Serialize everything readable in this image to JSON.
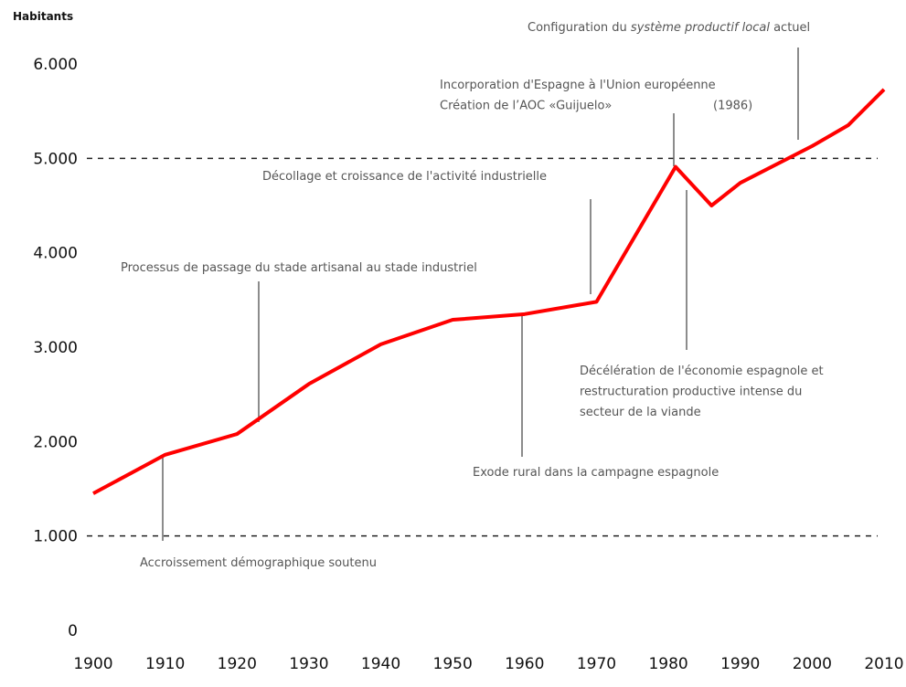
{
  "chart_data": {
    "type": "line",
    "y_label": "Habitants",
    "x": [
      1900,
      1910,
      1920,
      1930,
      1940,
      1950,
      1960,
      1970,
      1981,
      1986,
      1990,
      2000,
      2005,
      2010
    ],
    "series": [
      {
        "name": "Habitants",
        "color": "#ff0000",
        "values": [
          1450,
          1860,
          2080,
          2610,
          3030,
          3290,
          3350,
          3480,
          4910,
          4500,
          4740,
          5130,
          5350,
          5730
        ]
      }
    ],
    "xlim": [
      1900,
      2010
    ],
    "xticks": [
      1900,
      1910,
      1920,
      1930,
      1940,
      1950,
      1960,
      1970,
      1980,
      1990,
      2000,
      2010
    ],
    "ylim": [
      0,
      6000
    ],
    "yticks": [
      {
        "value": 0,
        "label": "0"
      },
      {
        "value": 1000,
        "label": "1.000"
      },
      {
        "value": 2000,
        "label": "2.000"
      },
      {
        "value": 3000,
        "label": "3.000"
      },
      {
        "value": 4000,
        "label": "4.000"
      },
      {
        "value": 5000,
        "label": "5.000"
      },
      {
        "value": 6000,
        "label": "6.000"
      }
    ],
    "grid_lines": [
      1000,
      5000
    ],
    "annotations": [
      {
        "lines": [
          "Accroissement démographique soutenu"
        ]
      },
      {
        "lines": [
          "Processus de passage du stade artisanal au stade industriel"
        ]
      },
      {
        "lines": [
          "Décollage et croissance de l'activité industrielle"
        ]
      },
      {
        "lines": [
          "Exode rural dans la campagne espagnole"
        ]
      },
      {
        "lines": [
          "Incorporation d'Espagne à l'Union européenne",
          "Création de l’AOC «Guijuelo»"
        ],
        "note": "(1986)"
      },
      {
        "lines": [
          "Décélération de l'économie espagnole et",
          "restructuration productive intense du",
          "secteur de la viande"
        ]
      },
      {
        "parts": [
          "Configuration du ",
          "système productif local",
          " actuel"
        ]
      }
    ]
  }
}
